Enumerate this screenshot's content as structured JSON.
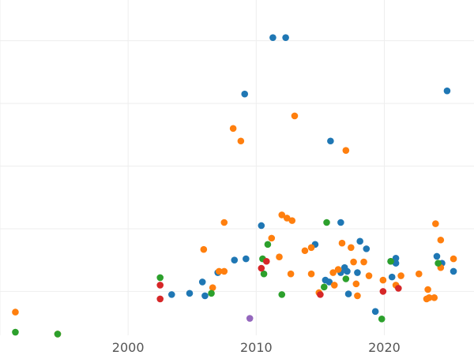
{
  "chart_data": {
    "type": "scatter",
    "title": "",
    "xlabel": "",
    "ylabel": "",
    "grid": true,
    "xlim": [
      1990,
      2027
    ],
    "ylim": [
      0.3,
      5.65
    ],
    "x_ticks": [
      {
        "value": 2000,
        "label": "2000"
      },
      {
        "value": 2010,
        "label": "2010"
      },
      {
        "value": 2020,
        "label": "2020"
      }
    ],
    "y_gridlines": [
      1,
      2,
      3,
      4,
      5
    ],
    "series": [
      {
        "color": "#1f77b4",
        "points": [
          [
            2003.4,
            0.95
          ],
          [
            2004.8,
            0.97
          ],
          [
            2005.8,
            1.15
          ],
          [
            2006.0,
            0.93
          ],
          [
            2007.0,
            1.3
          ],
          [
            2008.3,
            1.5
          ],
          [
            2009.1,
            4.15
          ],
          [
            2009.2,
            1.52
          ],
          [
            2010.4,
            2.05
          ],
          [
            2011.3,
            5.05
          ],
          [
            2012.3,
            5.05
          ],
          [
            2014.6,
            1.75
          ],
          [
            2015.4,
            1.18
          ],
          [
            2015.7,
            1.15
          ],
          [
            2015.8,
            3.4
          ],
          [
            2016.6,
            2.1
          ],
          [
            2016.6,
            1.3
          ],
          [
            2016.9,
            1.38
          ],
          [
            2017.1,
            1.32
          ],
          [
            2017.2,
            0.96
          ],
          [
            2017.9,
            1.3
          ],
          [
            2018.1,
            1.8
          ],
          [
            2018.6,
            1.68
          ],
          [
            2019.3,
            0.68
          ],
          [
            2020.5,
            1.48
          ],
          [
            2020.6,
            1.23
          ],
          [
            2020.9,
            1.45
          ],
          [
            2020.9,
            1.53
          ],
          [
            2024.1,
            1.56
          ],
          [
            2024.5,
            1.45
          ],
          [
            2024.9,
            4.2
          ],
          [
            2025.4,
            1.32
          ]
        ]
      },
      {
        "color": "#ff7f0e",
        "points": [
          [
            1991.2,
            0.67
          ],
          [
            1994.5,
            0.32
          ],
          [
            2005.9,
            1.67
          ],
          [
            2006.6,
            1.06
          ],
          [
            2007.1,
            1.32
          ],
          [
            2007.5,
            2.1
          ],
          [
            2007.5,
            1.32
          ],
          [
            2008.2,
            3.6
          ],
          [
            2008.8,
            3.4
          ],
          [
            2011.2,
            1.85
          ],
          [
            2011.8,
            1.55
          ],
          [
            2012.0,
            2.22
          ],
          [
            2012.4,
            2.17
          ],
          [
            2012.7,
            1.28
          ],
          [
            2012.8,
            2.13
          ],
          [
            2013.0,
            3.8
          ],
          [
            2013.8,
            1.65
          ],
          [
            2014.3,
            1.7
          ],
          [
            2014.3,
            1.28
          ],
          [
            2014.9,
            0.98
          ],
          [
            2016.0,
            1.3
          ],
          [
            2016.1,
            1.1
          ],
          [
            2016.4,
            1.35
          ],
          [
            2016.7,
            1.77
          ],
          [
            2017.0,
            3.25
          ],
          [
            2017.4,
            1.7
          ],
          [
            2017.6,
            1.47
          ],
          [
            2017.8,
            1.12
          ],
          [
            2017.9,
            0.93
          ],
          [
            2018.4,
            1.47
          ],
          [
            2018.8,
            1.25
          ],
          [
            2019.9,
            1.18
          ],
          [
            2020.9,
            1.1
          ],
          [
            2021.3,
            1.25
          ],
          [
            2022.7,
            1.28
          ],
          [
            2023.3,
            0.88
          ],
          [
            2023.4,
            1.03
          ],
          [
            2023.5,
            0.9
          ],
          [
            2023.9,
            0.9
          ],
          [
            2024.0,
            2.08
          ],
          [
            2024.4,
            1.38
          ],
          [
            2024.4,
            1.82
          ],
          [
            2025.4,
            1.52
          ]
        ]
      },
      {
        "color": "#2ca02c",
        "points": [
          [
            1991.2,
            0.35
          ],
          [
            1994.5,
            0.32
          ],
          [
            2002.5,
            1.22
          ],
          [
            2006.5,
            0.97
          ],
          [
            2010.5,
            1.52
          ],
          [
            2010.6,
            1.28
          ],
          [
            2010.9,
            1.75
          ],
          [
            2012.0,
            0.95
          ],
          [
            2015.3,
            1.07
          ],
          [
            2015.5,
            2.1
          ],
          [
            2017.0,
            1.2
          ],
          [
            2019.8,
            0.56
          ],
          [
            2020.5,
            1.48
          ],
          [
            2024.2,
            1.45
          ]
        ]
      },
      {
        "color": "#d62728",
        "points": [
          [
            2002.5,
            0.88
          ],
          [
            2002.5,
            1.1
          ],
          [
            2010.4,
            1.37
          ],
          [
            2010.8,
            1.48
          ],
          [
            2015.0,
            0.95
          ],
          [
            2019.9,
            1.0
          ],
          [
            2021.1,
            1.05
          ]
        ]
      },
      {
        "color": "#9467bd",
        "points": [
          [
            2009.5,
            0.57
          ]
        ]
      }
    ]
  }
}
